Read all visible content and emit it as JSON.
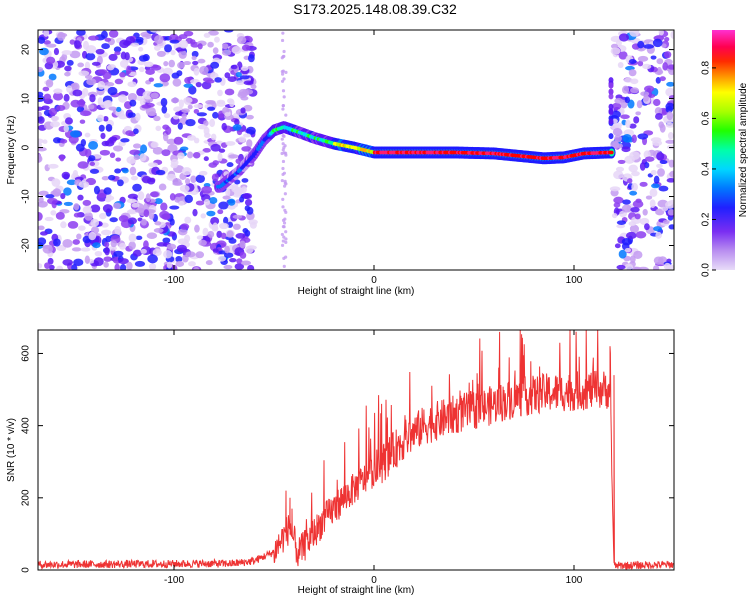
{
  "title": "S173.2025.148.08.39.C32",
  "chart_data": [
    {
      "type": "heatmap",
      "title": "S173.2025.148.08.39.C32",
      "xlabel": "Height of straight line (km)",
      "ylabel": "Frequency (Hz)",
      "xlim": [
        -168,
        150
      ],
      "ylim": [
        -25,
        24
      ],
      "xticks": [
        -100,
        0,
        100
      ],
      "yticks": [
        -20,
        -10,
        0,
        10,
        20
      ],
      "colorbar": {
        "label": "Normalized spectral amplitude",
        "range": [
          0.0,
          0.95
        ],
        "ticks": [
          "0.0",
          "0.2",
          "0.4",
          "0.6",
          "0.8"
        ],
        "colors": [
          "#e6d6f7",
          "#c39af1",
          "#8c3cf0",
          "#5a16f5",
          "#1f1bff",
          "#0078ff",
          "#00d7ff",
          "#00ffa0",
          "#2cff00",
          "#b4ff00",
          "#ffff00",
          "#ffaa00",
          "#ff4a00",
          "#ff0000",
          "#ff1c6e",
          "#ff28c8"
        ]
      },
      "ridge": {
        "points": [
          [
            -77,
            -8
          ],
          [
            -68,
            -5
          ],
          [
            -60,
            -1.5
          ],
          [
            -55,
            1.5
          ],
          [
            -50,
            3.5
          ],
          [
            -45,
            4.2
          ],
          [
            -38,
            3.2
          ],
          [
            -30,
            2
          ],
          [
            -20,
            0.8
          ],
          [
            -10,
            0
          ],
          [
            0,
            -1
          ],
          [
            10,
            -1
          ],
          [
            20,
            -1
          ],
          [
            40,
            -1
          ],
          [
            60,
            -1.2
          ],
          [
            75,
            -1.8
          ],
          [
            85,
            -2.2
          ],
          [
            95,
            -2
          ],
          [
            105,
            -1.2
          ],
          [
            118,
            -1
          ]
        ]
      },
      "noise_regions": [
        [
          -168,
          -60
        ],
        [
          120,
          150
        ]
      ],
      "grid": false
    },
    {
      "type": "line",
      "xlabel": "Height of straight line (km)",
      "ylabel": "SNR (10 * v/v)",
      "xlim": [
        -168,
        150
      ],
      "ylim": [
        0,
        665
      ],
      "xticks": [
        -100,
        0,
        100
      ],
      "yticks": [
        0,
        200,
        400,
        600
      ],
      "color": "#ee3333",
      "envelope": {
        "x": [
          -168,
          -70,
          -60,
          -50,
          -42,
          -38,
          -35,
          -25,
          -15,
          -5,
          5,
          15,
          25,
          40,
          55,
          70,
          85,
          100,
          110,
          118,
          119,
          120,
          121,
          150
        ],
        "y": [
          15,
          18,
          25,
          50,
          120,
          45,
          65,
          140,
          200,
          250,
          300,
          360,
          400,
          430,
          450,
          475,
          490,
          495,
          500,
          500,
          250,
          10,
          12,
          15
        ]
      },
      "spikes": [
        [
          -44,
          220
        ],
        [
          -42,
          200
        ],
        [
          -41,
          170
        ],
        [
          118,
          620
        ],
        [
          120,
          540
        ]
      ],
      "grid": false
    }
  ]
}
